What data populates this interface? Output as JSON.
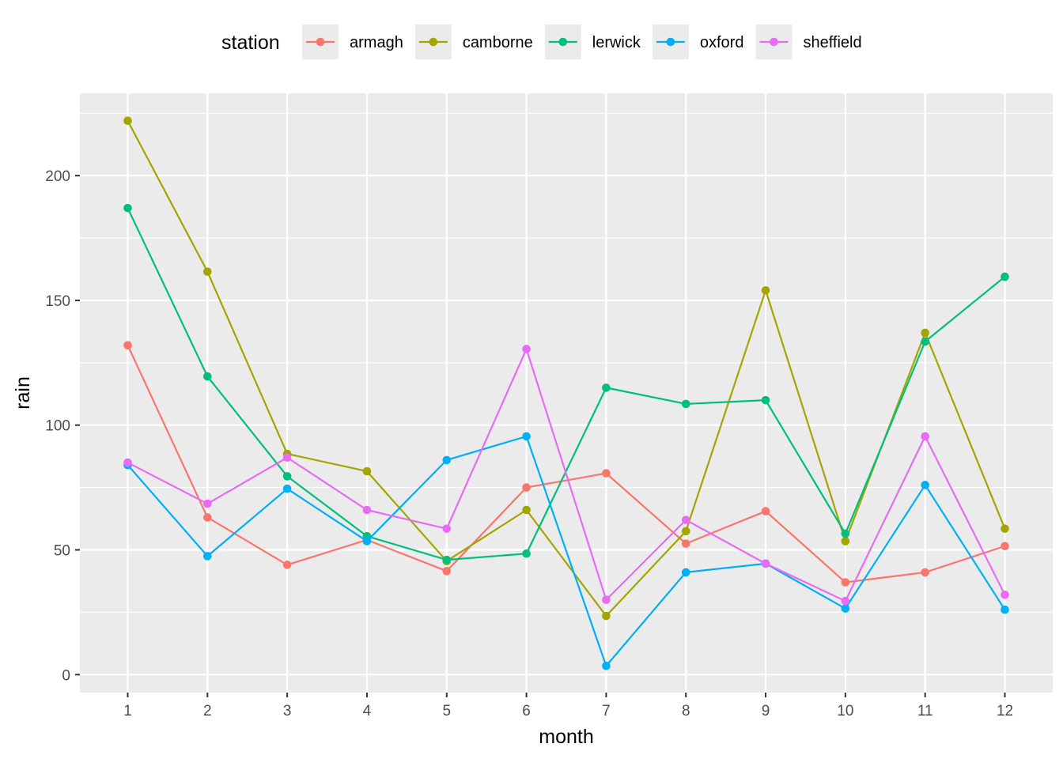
{
  "chart_data": {
    "type": "line",
    "xlabel": "month",
    "ylabel": "rain",
    "x": [
      1,
      2,
      3,
      4,
      5,
      6,
      7,
      8,
      9,
      10,
      11,
      12
    ],
    "xlim": [
      0.4,
      12.6
    ],
    "ylim": [
      -7.2,
      233
    ],
    "xticks": [
      1,
      2,
      3,
      4,
      5,
      6,
      7,
      8,
      9,
      10,
      11,
      12
    ],
    "yticks": [
      0,
      50,
      100,
      150,
      200
    ],
    "grid": true,
    "legend": {
      "title": "station",
      "position": "top"
    },
    "series": [
      {
        "name": "armagh",
        "color": "#F8766D",
        "values": [
          132,
          63,
          44,
          54,
          41.5,
          75,
          80.7,
          52.5,
          65.5,
          37,
          41,
          51.5
        ]
      },
      {
        "name": "camborne",
        "color": "#A3A500",
        "values": [
          222,
          161.5,
          88.5,
          81.5,
          45.5,
          66,
          23.5,
          57.5,
          154,
          53.5,
          137,
          58.5
        ]
      },
      {
        "name": "lerwick",
        "color": "#00BF7D",
        "values": [
          187,
          119.5,
          79.5,
          55.5,
          46,
          48.5,
          115,
          108.5,
          110,
          56.5,
          133.5,
          159.5
        ]
      },
      {
        "name": "oxford",
        "color": "#00B0F6",
        "values": [
          84,
          47.5,
          74.5,
          53.5,
          86,
          95.5,
          3.5,
          41,
          44.5,
          26.5,
          76,
          26
        ]
      },
      {
        "name": "sheffield",
        "color": "#E76BF3",
        "values": [
          85,
          68.5,
          87,
          66,
          58.5,
          130.5,
          30,
          62,
          44.5,
          29.5,
          95.5,
          32
        ]
      }
    ]
  }
}
